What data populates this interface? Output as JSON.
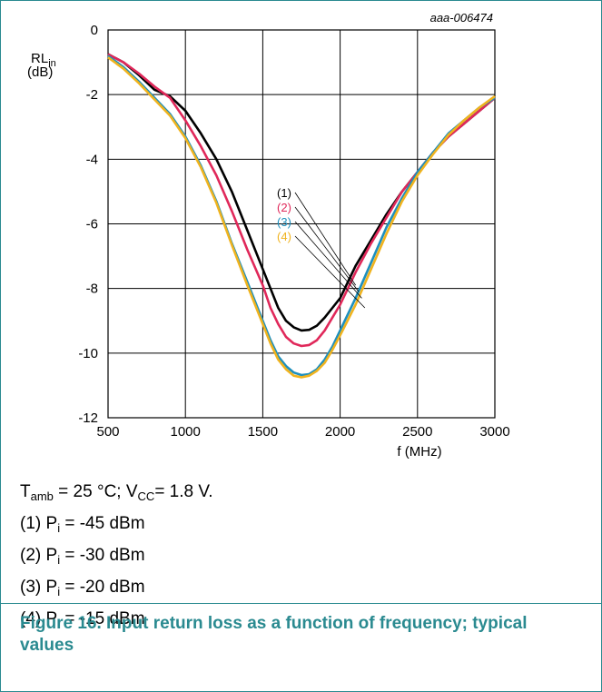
{
  "chart_data": {
    "type": "line",
    "code": "aaa-006474",
    "ylabel_main": "RL",
    "ylabel_sub": "in",
    "ylabel_unit": "(dB)",
    "xlabel": "f (MHz)",
    "xlim": [
      500,
      3000
    ],
    "ylim": [
      -12,
      0
    ],
    "xticks": [
      500,
      1000,
      1500,
      2000,
      2500,
      3000
    ],
    "yticks": [
      0,
      -2,
      -4,
      -6,
      -8,
      -10,
      -12
    ],
    "grid": true,
    "series": [
      {
        "name": "(1)",
        "color": "#000000",
        "label_at": [
          2100,
          -7.9
        ],
        "points": [
          [
            500,
            -0.75
          ],
          [
            600,
            -1.0
          ],
          [
            700,
            -1.4
          ],
          [
            800,
            -1.85
          ],
          [
            900,
            -2.05
          ],
          [
            1000,
            -2.5
          ],
          [
            1100,
            -3.2
          ],
          [
            1200,
            -4.0
          ],
          [
            1300,
            -5.0
          ],
          [
            1400,
            -6.2
          ],
          [
            1500,
            -7.4
          ],
          [
            1550,
            -8.0
          ],
          [
            1600,
            -8.6
          ],
          [
            1650,
            -9.0
          ],
          [
            1700,
            -9.2
          ],
          [
            1750,
            -9.3
          ],
          [
            1800,
            -9.28
          ],
          [
            1850,
            -9.15
          ],
          [
            1900,
            -8.9
          ],
          [
            1950,
            -8.6
          ],
          [
            2000,
            -8.3
          ],
          [
            2100,
            -7.3
          ],
          [
            2200,
            -6.5
          ],
          [
            2300,
            -5.7
          ],
          [
            2400,
            -5.0
          ],
          [
            2500,
            -4.4
          ],
          [
            2600,
            -3.8
          ],
          [
            2700,
            -3.3
          ],
          [
            2800,
            -2.9
          ],
          [
            2900,
            -2.5
          ],
          [
            3000,
            -2.1
          ]
        ]
      },
      {
        "name": "(2)",
        "color": "#e0285a",
        "label_at": [
          2120,
          -8.1
        ],
        "points": [
          [
            500,
            -0.75
          ],
          [
            600,
            -1.0
          ],
          [
            700,
            -1.35
          ],
          [
            800,
            -1.75
          ],
          [
            900,
            -2.1
          ],
          [
            1000,
            -2.8
          ],
          [
            1100,
            -3.6
          ],
          [
            1200,
            -4.5
          ],
          [
            1300,
            -5.6
          ],
          [
            1400,
            -6.8
          ],
          [
            1500,
            -7.9
          ],
          [
            1550,
            -8.6
          ],
          [
            1600,
            -9.1
          ],
          [
            1650,
            -9.5
          ],
          [
            1700,
            -9.7
          ],
          [
            1750,
            -9.78
          ],
          [
            1800,
            -9.75
          ],
          [
            1850,
            -9.6
          ],
          [
            1900,
            -9.3
          ],
          [
            1950,
            -8.9
          ],
          [
            2000,
            -8.5
          ],
          [
            2100,
            -7.5
          ],
          [
            2200,
            -6.6
          ],
          [
            2300,
            -5.8
          ],
          [
            2400,
            -5.0
          ],
          [
            2500,
            -4.4
          ],
          [
            2600,
            -3.8
          ],
          [
            2700,
            -3.3
          ],
          [
            2800,
            -2.9
          ],
          [
            2900,
            -2.5
          ],
          [
            3000,
            -2.1
          ]
        ]
      },
      {
        "name": "(3)",
        "color": "#1d8fbd",
        "label_at": [
          2140,
          -8.3
        ],
        "points": [
          [
            500,
            -0.8
          ],
          [
            600,
            -1.15
          ],
          [
            700,
            -1.6
          ],
          [
            800,
            -2.1
          ],
          [
            900,
            -2.6
          ],
          [
            1000,
            -3.3
          ],
          [
            1100,
            -4.2
          ],
          [
            1200,
            -5.3
          ],
          [
            1300,
            -6.6
          ],
          [
            1400,
            -7.8
          ],
          [
            1500,
            -9.0
          ],
          [
            1550,
            -9.6
          ],
          [
            1600,
            -10.1
          ],
          [
            1650,
            -10.4
          ],
          [
            1700,
            -10.6
          ],
          [
            1750,
            -10.68
          ],
          [
            1800,
            -10.65
          ],
          [
            1850,
            -10.5
          ],
          [
            1900,
            -10.2
          ],
          [
            1950,
            -9.8
          ],
          [
            2000,
            -9.3
          ],
          [
            2100,
            -8.3
          ],
          [
            2200,
            -7.2
          ],
          [
            2300,
            -6.1
          ],
          [
            2400,
            -5.2
          ],
          [
            2500,
            -4.4
          ],
          [
            2600,
            -3.8
          ],
          [
            2700,
            -3.2
          ],
          [
            2800,
            -2.8
          ],
          [
            2900,
            -2.4
          ],
          [
            3000,
            -2.1
          ]
        ]
      },
      {
        "name": "(4)",
        "color": "#f0b31e",
        "label_at": [
          2160,
          -8.6
        ],
        "points": [
          [
            500,
            -0.85
          ],
          [
            600,
            -1.2
          ],
          [
            700,
            -1.65
          ],
          [
            800,
            -2.15
          ],
          [
            900,
            -2.65
          ],
          [
            1000,
            -3.35
          ],
          [
            1100,
            -4.25
          ],
          [
            1200,
            -5.35
          ],
          [
            1300,
            -6.65
          ],
          [
            1400,
            -7.9
          ],
          [
            1500,
            -9.1
          ],
          [
            1550,
            -9.7
          ],
          [
            1600,
            -10.2
          ],
          [
            1650,
            -10.5
          ],
          [
            1700,
            -10.7
          ],
          [
            1750,
            -10.75
          ],
          [
            1800,
            -10.7
          ],
          [
            1850,
            -10.55
          ],
          [
            1900,
            -10.3
          ],
          [
            1950,
            -9.9
          ],
          [
            2000,
            -9.45
          ],
          [
            2100,
            -8.5
          ],
          [
            2200,
            -7.4
          ],
          [
            2300,
            -6.3
          ],
          [
            2400,
            -5.3
          ],
          [
            2500,
            -4.5
          ],
          [
            2600,
            -3.85
          ],
          [
            2700,
            -3.25
          ],
          [
            2800,
            -2.8
          ],
          [
            2900,
            -2.4
          ],
          [
            3000,
            -2.05
          ]
        ]
      }
    ]
  },
  "notes": {
    "condition": {
      "t_main": "T",
      "t_sub": "amb",
      "t_rest": " = 25 °C; V",
      "v_sub": "CC",
      "v_rest": "= 1.8 V."
    },
    "items": [
      {
        "prefix": "(1) P",
        "sub": "i",
        "rest": " = -45 dBm"
      },
      {
        "prefix": "(2) P",
        "sub": "i",
        "rest": " = -30 dBm"
      },
      {
        "prefix": "(3) P",
        "sub": "i",
        "rest": " = -20 dBm"
      },
      {
        "prefix": "(4) P",
        "sub": "i",
        "rest": " = -15 dBm"
      }
    ]
  },
  "caption": "Figure 16.  Input return loss as a function of frequency; typical values"
}
